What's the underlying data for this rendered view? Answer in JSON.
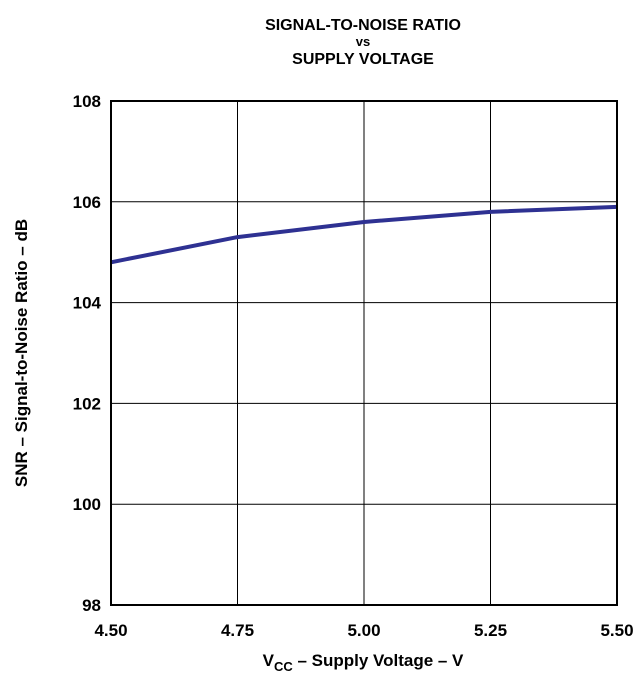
{
  "chart_data": {
    "type": "line",
    "title": [
      "SIGNAL-TO-NOISE RATIO",
      "vs",
      "SUPPLY VOLTAGE"
    ],
    "xlabel": {
      "main": "V",
      "sub": "CC",
      "rest": " – Supply Voltage – V"
    },
    "ylabel": "SNR – Signal-to-Noise Ratio – dB",
    "xlim": [
      4.5,
      5.5
    ],
    "ylim": [
      98,
      108
    ],
    "xticks": [
      4.5,
      4.75,
      5.0,
      5.25,
      5.5
    ],
    "xtick_labels": [
      "4.50",
      "4.75",
      "5.00",
      "5.25",
      "5.50"
    ],
    "yticks": [
      98,
      100,
      102,
      104,
      106,
      108
    ],
    "ytick_labels": [
      "98",
      "100",
      "102",
      "104",
      "106",
      "108"
    ],
    "grid": true,
    "series": [
      {
        "color": "#2e3192",
        "x": [
          4.5,
          4.75,
          5.0,
          5.25,
          5.5
        ],
        "y": [
          104.8,
          105.3,
          105.6,
          105.8,
          105.9
        ]
      }
    ]
  }
}
